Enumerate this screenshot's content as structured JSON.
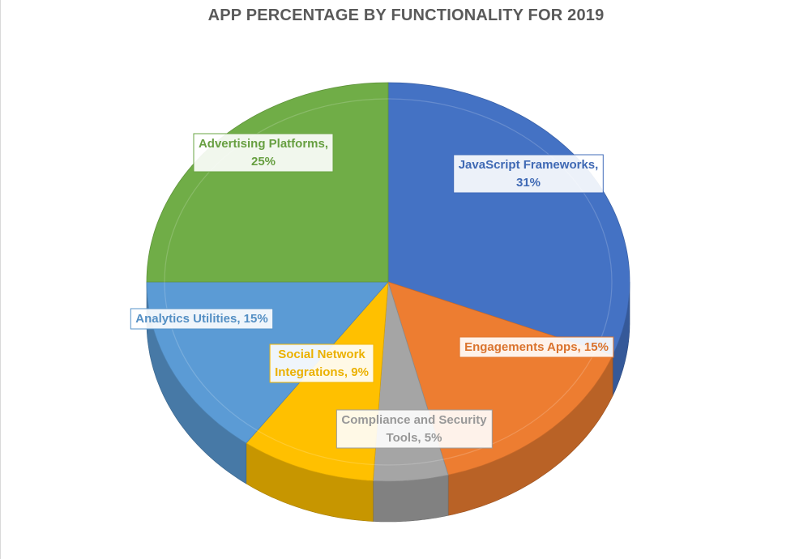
{
  "chart_data": {
    "type": "pie",
    "title": "APP PERCENTAGE BY FUNCTIONALITY FOR 2019",
    "slices": [
      {
        "label": "JavaScript Frameworks",
        "value": 31,
        "display": "JavaScript Frameworks, 31%",
        "color": "#4472C4"
      },
      {
        "label": "Engagements Apps",
        "value": 15,
        "display": "Engagements Apps, 15%",
        "color": "#ED7D31"
      },
      {
        "label": "Compliance and Security Tools",
        "value": 5,
        "display": "Compliance and Security Tools, 5%",
        "color": "#A5A5A5"
      },
      {
        "label": "Social Network Integrations",
        "value": 9,
        "display": "Social Network Integrations, 9%",
        "color": "#FFC000"
      },
      {
        "label": "Analytics Utilities",
        "value": 15,
        "display": "Analytics Utilities, 15%",
        "color": "#5B9BD5"
      },
      {
        "label": "Advertising Platforms",
        "value": 25,
        "display": "Advertising Platforms, 25%",
        "color": "#70AD47"
      }
    ],
    "style": "3d-pie",
    "legend": "none",
    "data_labels": "callout"
  }
}
